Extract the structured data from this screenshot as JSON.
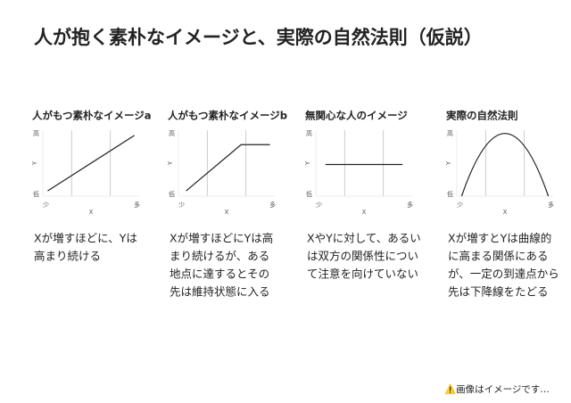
{
  "title": "人が抱く素朴なイメージと、実際の自然法則（仮説）",
  "panels": [
    {
      "heading": "人がもつ素朴なイメージa",
      "y_high": "高",
      "y_low": "低",
      "x_low": "少",
      "x_high": "多",
      "x_label": "X",
      "y_label": "Y",
      "lines": [
        "Xが増すほどに、Yは",
        "高まり続ける"
      ]
    },
    {
      "heading": "人がもつ素朴なイメージb",
      "y_high": "高",
      "y_low": "低",
      "x_low": "少",
      "x_high": "多",
      "x_label": "X",
      "y_label": "Y",
      "lines": [
        "Xが増すほどにYは高",
        "まり続けるが、ある",
        "地点に達するとその",
        "先は維持状態に入る"
      ]
    },
    {
      "heading": "無関心な人のイメージ",
      "y_high": "高",
      "y_low": "低",
      "x_low": "少",
      "x_high": "多",
      "x_label": "X",
      "y_label": "Y",
      "lines": [
        "XやYに対して、あるい",
        "は双方の関係性につい",
        "て注意を向けていない"
      ]
    },
    {
      "heading": "実際の自然法則",
      "y_high": "高",
      "y_low": "低",
      "x_low": "少",
      "x_high": "多",
      "x_label": "X",
      "y_label": "Y",
      "lines": [
        "Xが増すとYは曲線的",
        "に高まる関係にある",
        "が、一定の到達点から",
        "先は下降線をたどる"
      ]
    }
  ],
  "footer": "⚠️画像はイメージです…"
}
